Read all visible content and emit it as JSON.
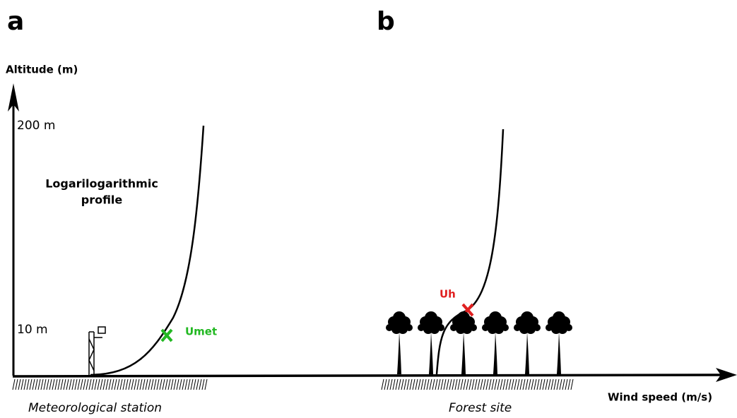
{
  "panels": [
    {
      "letter": "a",
      "profile_label": [
        "Logarilogarithmic",
        "profile"
      ],
      "marker": "Umet",
      "ground_label": "Meteorological station"
    },
    {
      "letter": "b",
      "marker": "Uh",
      "ground_label": "Forest site"
    }
  ],
  "y_axis_label": "Altitude (m)",
  "x_axis_label": "Wind speed (m/s)",
  "height_labels": [
    "200 m",
    "10 m"
  ]
}
